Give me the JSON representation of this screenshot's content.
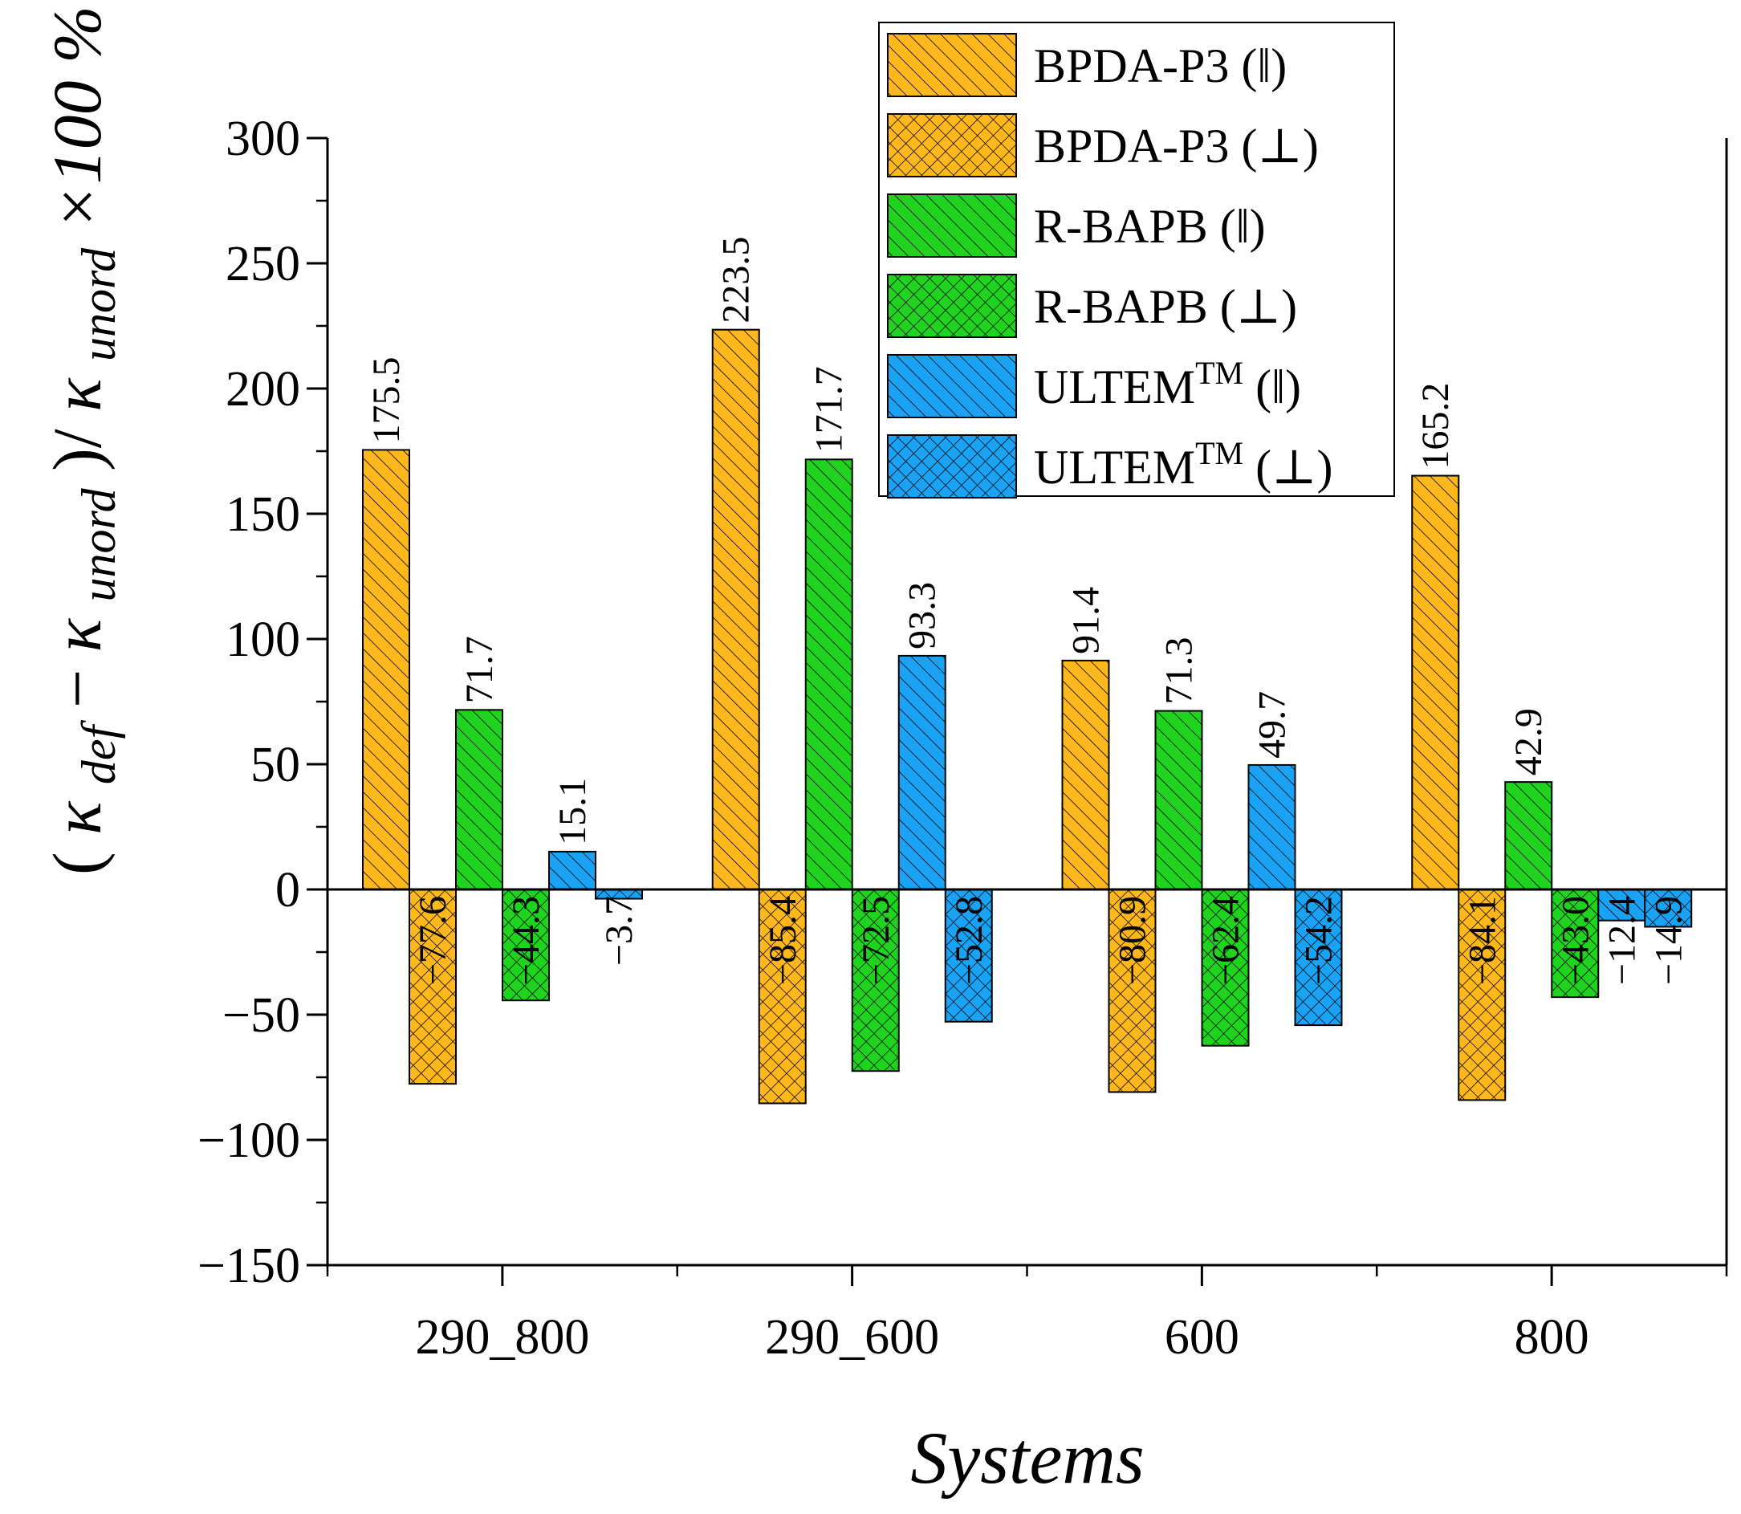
{
  "chart_data": {
    "type": "bar",
    "categories": [
      "290_800",
      "290_600",
      "600",
      "800"
    ],
    "series": [
      {
        "name": "BPDA-P3 (‖)",
        "base": "BPDA-P3",
        "orient": "‖",
        "color": "#FFB81C",
        "hatch": "diag",
        "values": [
          175.5,
          223.5,
          91.4,
          165.2
        ],
        "labels": [
          "175.5",
          "223.5",
          "91.4",
          "165.2"
        ]
      },
      {
        "name": "BPDA-P3 (⊥)",
        "base": "BPDA-P3",
        "orient": "⊥",
        "color": "#FFB81C",
        "hatch": "cross",
        "values": [
          -77.6,
          -85.4,
          -80.9,
          -84.1
        ],
        "labels": [
          "−77.6",
          "−85.4",
          "−80.9",
          "−84.1"
        ]
      },
      {
        "name": "R-BAPB (‖)",
        "base": "R-BAPB",
        "orient": "‖",
        "color": "#1FD31F",
        "hatch": "diag",
        "values": [
          71.7,
          171.7,
          71.3,
          42.9
        ],
        "labels": [
          "71.7",
          "171.7",
          "71.3",
          "42.9"
        ]
      },
      {
        "name": "R-BAPB (⊥)",
        "base": "R-BAPB",
        "orient": "⊥",
        "color": "#1FD31F",
        "hatch": "cross",
        "values": [
          -44.3,
          -72.5,
          -62.4,
          -43.0
        ],
        "labels": [
          "−44.3",
          "−72.5",
          "−62.4",
          "−43.0"
        ]
      },
      {
        "name": "ULTEM™ (‖)",
        "base": "ULTEM",
        "sup": "TM",
        "orient": "‖",
        "color": "#1AA3F5",
        "hatch": "diag",
        "values": [
          15.1,
          93.3,
          49.7,
          -12.4
        ],
        "labels": [
          "15.1",
          "93.3",
          "49.7",
          "−12.4"
        ]
      },
      {
        "name": "ULTEM™ (⊥)",
        "base": "ULTEM",
        "sup": "TM",
        "orient": "⊥",
        "color": "#1AA3F5",
        "hatch": "cross",
        "values": [
          -3.7,
          -52.8,
          -54.2,
          -14.9
        ],
        "labels": [
          "−3.7",
          "−52.8",
          "−54.2",
          "−14.9"
        ]
      }
    ],
    "title": "",
    "xlabel": "Systems",
    "ylabel": "(κ_def − κ_unord)/κ_unord ×100 %",
    "ylabel_parts": {
      "open": "(",
      "kappa": "κ",
      "sub_def": "def",
      "minus": "−",
      "sub_unord": "unord",
      "close_slash": ")/",
      "suffix": " ×100 %"
    },
    "ylim": [
      -150,
      300
    ],
    "yticks": [
      -150,
      -100,
      -50,
      0,
      50,
      100,
      150,
      200,
      250,
      300
    ],
    "ytick_labels": [
      "−150",
      "−100",
      "−50",
      "0",
      "50",
      "100",
      "150",
      "200",
      "250",
      "300"
    ],
    "grid": false,
    "legend": "top-right"
  }
}
